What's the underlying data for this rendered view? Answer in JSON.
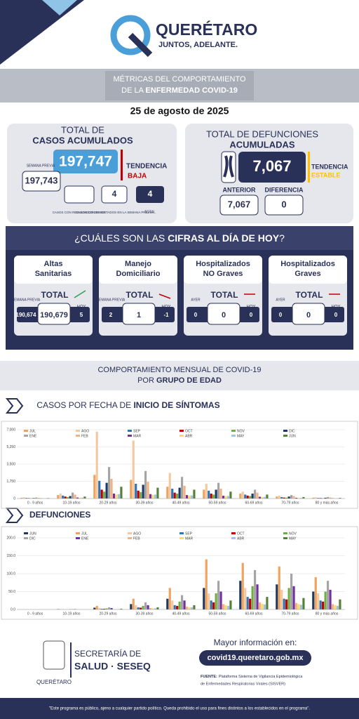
{
  "header": {
    "brand": "QUERÉTARO",
    "slogan": "JUNTOS, ADELANTE."
  },
  "banner": {
    "line1": "MÉTRICAS DEL COMPORTAMIENTO",
    "line2_prefix": "DE LA ",
    "line2_bold": "ENFERMEDAD COVID-19"
  },
  "date": "25 de agosto de 2025",
  "cases": {
    "title1": "TOTAL DE",
    "title2": "CASOS ACUMULADOS",
    "prev_label": "SEMANA PREVIA",
    "prev": "197,743",
    "total": "197,747",
    "trend_label": "TENDENCIA",
    "trend": "BAJA",
    "today_label": "CASOS CON RESULTADOS DE HOY",
    "week": "4",
    "week_label": "CASOS CON RESULTADOS EN LA SEMANA PREVIA",
    "sum": "4",
    "sum_label": "TOTAL"
  },
  "deaths": {
    "title1": "TOTAL DE DEFUNCIONES",
    "title2": "ACUMULADAS",
    "total": "7,067",
    "trend_label": "TENDENCIA",
    "trend": "ESTABLE",
    "prev_label": "ANTERIOR",
    "prev": "7,067",
    "diff_label": "DIFERENCIA",
    "diff": "0"
  },
  "today": {
    "title_prefix": "¿CUÁLES SON LAS ",
    "title_bold": "CIFRAS AL DÍA DE HOY",
    "title_suffix": "?",
    "cards": [
      {
        "title1": "Altas",
        "title2": "Sanitarias",
        "total_label": "TOTAL",
        "left_label": "SEMANA PREVIA",
        "left": "190,674",
        "value": "190,679",
        "right_label": "HOY",
        "right": "5"
      },
      {
        "title1": "Manejo",
        "title2": "Domiciliario",
        "total_label": "TOTAL",
        "left_label": "SEMANA PREVIA",
        "left": "2",
        "value": "1",
        "right_label": "HOY",
        "right": "-1"
      },
      {
        "title1": "Hospitalizados",
        "title2": "NO Graves",
        "total_label": "TOTAL",
        "left_label": "AYER",
        "left": "0",
        "value": "0",
        "right_label": "HOY",
        "right": "0"
      },
      {
        "title1": "Hospitalizados",
        "title2": "Graves",
        "total_label": "TOTAL",
        "left_label": "AYER",
        "left": "0",
        "value": "0",
        "right_label": "HOY",
        "right": "0"
      }
    ]
  },
  "monthly": {
    "line1": "COMPORTAMIENTO MENSUAL DE COVID-19",
    "line2_prefix": "POR ",
    "line2_bold": "GRUPO DE EDAD"
  },
  "cases_title": {
    "prefix": "CASOS POR FECHA DE ",
    "bold": "INICIO DE SÍNTOMAS"
  },
  "deaths_title": "DEFUNCIONES",
  "footer": {
    "dept1": "SECRETARÍA DE",
    "dept2": "SALUD · SESEQ",
    "state": "QUERÉTARO",
    "more": "Mayor información en:",
    "url": "covid19.queretaro.gob.mx",
    "source_label": "FUENTE:",
    "source1": "Plataforma Sistema de Vigilancia Epidemiológica",
    "source2": "de Enfermedades Respiratorias Virales (SISVER)",
    "disclaimer": "\"Este programa es público, ajeno a cualquier partido político. Queda prohibido el uso para fines distintos a los establecidos en el programa\"."
  },
  "chart_data": [
    {
      "type": "bar",
      "categories": [
        "0 - 9 años",
        "10-19 años",
        "20-29 años",
        "30-39 años",
        "40-49 años",
        "50-59 años",
        "60-69 años",
        "70-79 años",
        "80 y más años"
      ],
      "ylim": [
        0,
        7000
      ],
      "yticks": [
        0,
        {
          "value": 1750,
          "label": "1,750"
        },
        {
          "value": 3500,
          "label": "3,500"
        },
        {
          "value": 5250,
          "label": "5,250"
        },
        {
          "value": 7000,
          "label": "7,000"
        }
      ],
      "grid": true,
      "series": [
        {
          "name": "JUL",
          "color": "#f0a35e",
          "values": [
            80,
            350,
            2400,
            1900,
            1200,
            900,
            500,
            200,
            90
          ]
        },
        {
          "name": "AGO",
          "color": "#f5c9a0",
          "values": [
            120,
            500,
            6800,
            5900,
            2600,
            1500,
            700,
            300,
            120
          ]
        },
        {
          "name": "SEP",
          "color": "#2e75b6",
          "values": [
            60,
            300,
            1800,
            1500,
            1000,
            800,
            400,
            150,
            60
          ]
        },
        {
          "name": "OCT",
          "color": "#c00000",
          "values": [
            40,
            200,
            900,
            800,
            600,
            500,
            300,
            100,
            50
          ]
        },
        {
          "name": "NOV",
          "color": "#70ad47",
          "values": [
            30,
            150,
            700,
            650,
            500,
            400,
            250,
            90,
            40
          ]
        },
        {
          "name": "DIC",
          "color": "#203864",
          "values": [
            50,
            250,
            1600,
            1400,
            1100,
            900,
            500,
            200,
            80
          ]
        },
        {
          "name": "ENE",
          "color": "#a5a5a5",
          "values": [
            100,
            600,
            3200,
            2800,
            2200,
            1600,
            900,
            350,
            150
          ]
        },
        {
          "name": "FEB",
          "color": "#f4b183",
          "values": [
            70,
            400,
            2000,
            1700,
            1300,
            1000,
            600,
            250,
            100
          ]
        },
        {
          "name": "MAR",
          "color": "#7030a0",
          "values": [
            20,
            100,
            500,
            450,
            350,
            280,
            180,
            70,
            30
          ]
        },
        {
          "name": "ABR",
          "color": "#ffd966",
          "values": [
            15,
            80,
            400,
            380,
            300,
            240,
            150,
            60,
            25
          ]
        },
        {
          "name": "MAY",
          "color": "#9dc3e6",
          "values": [
            20,
            90,
            450,
            400,
            320,
            260,
            160,
            60,
            30
          ]
        },
        {
          "name": "JUN",
          "color": "#548235",
          "values": [
            40,
            200,
            1200,
            1100,
            900,
            700,
            400,
            150,
            60
          ]
        }
      ]
    },
    {
      "type": "bar",
      "categories": [
        "0 - 9 años",
        "10-19 años",
        "20-29 años",
        "30-39 años",
        "40-49 años",
        "50-59 años",
        "60-69 años",
        "70-79 años",
        "80 y más años"
      ],
      "ylim": [
        0,
        200
      ],
      "yticks": [
        {
          "value": 0,
          "label": "0.0"
        },
        {
          "value": 50,
          "label": "50.0"
        },
        {
          "value": 100,
          "label": "100.0"
        },
        {
          "value": 150,
          "label": "150.0"
        },
        {
          "value": 200,
          "label": "200.0"
        }
      ],
      "grid": true,
      "series": [
        {
          "name": "JUN",
          "color": "#203864",
          "values": [
            0,
            1,
            5,
            15,
            30,
            60,
            80,
            70,
            50
          ]
        },
        {
          "name": "JUL",
          "color": "#f0a35e",
          "values": [
            0,
            1,
            10,
            30,
            60,
            140,
            130,
            120,
            90
          ]
        },
        {
          "name": "AGO",
          "color": "#f5c9a0",
          "values": [
            0,
            1,
            4,
            12,
            25,
            45,
            60,
            55,
            45
          ]
        },
        {
          "name": "SEP",
          "color": "#2e75b6",
          "values": [
            0,
            0,
            2,
            6,
            12,
            25,
            35,
            30,
            25
          ]
        },
        {
          "name": "OCT",
          "color": "#c00000",
          "values": [
            0,
            0,
            2,
            5,
            10,
            20,
            30,
            28,
            22
          ]
        },
        {
          "name": "NOV",
          "color": "#70ad47",
          "values": [
            0,
            1,
            3,
            10,
            22,
            45,
            65,
            60,
            50
          ]
        },
        {
          "name": "DIC",
          "color": "#a5a5a5",
          "values": [
            0,
            1,
            6,
            20,
            40,
            80,
            110,
            100,
            80
          ]
        },
        {
          "name": "ENE",
          "color": "#7030a0",
          "values": [
            0,
            1,
            4,
            12,
            25,
            50,
            70,
            65,
            55
          ]
        },
        {
          "name": "FEB",
          "color": "#f4b183",
          "values": [
            0,
            0,
            1,
            4,
            8,
            15,
            20,
            18,
            15
          ]
        },
        {
          "name": "MAR",
          "color": "#ffd966",
          "values": [
            0,
            0,
            1,
            3,
            6,
            12,
            16,
            15,
            12
          ]
        },
        {
          "name": "ABR",
          "color": "#9dc3e6",
          "values": [
            0,
            0,
            1,
            3,
            6,
            10,
            14,
            13,
            10
          ]
        },
        {
          "name": "MAY",
          "color": "#548235",
          "values": [
            0,
            0,
            2,
            6,
            12,
            25,
            35,
            32,
            28
          ]
        }
      ]
    }
  ]
}
